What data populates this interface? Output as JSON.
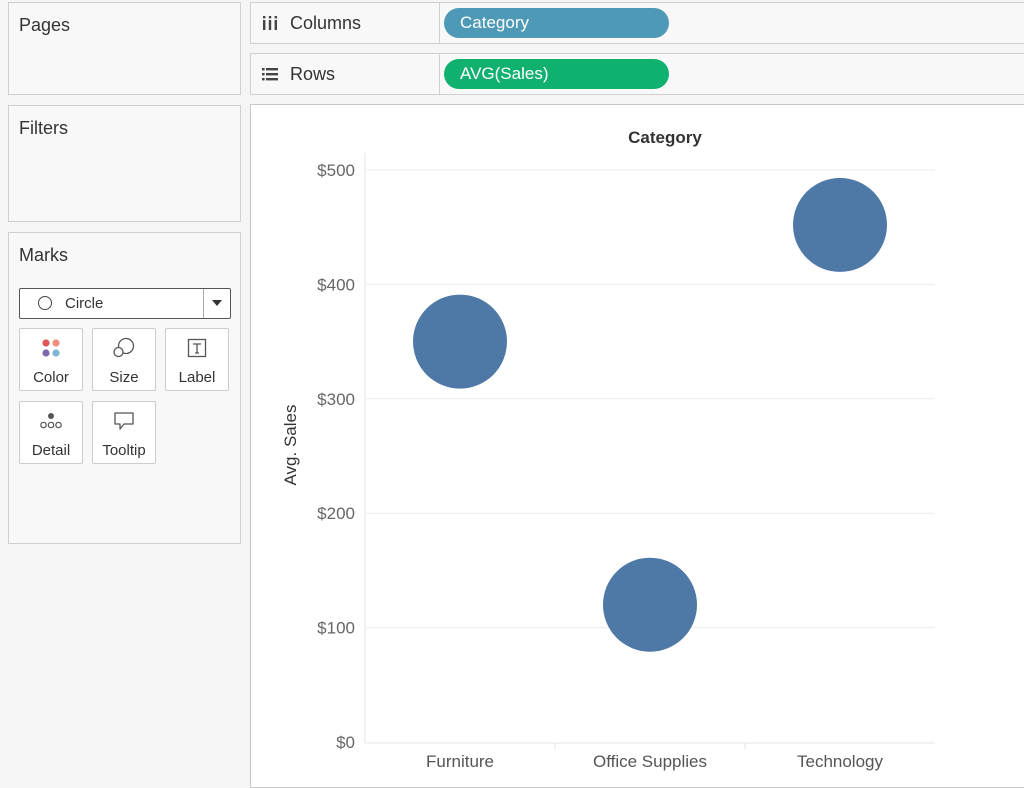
{
  "cards": {
    "pages": {
      "title": "Pages"
    },
    "filters": {
      "title": "Filters"
    },
    "marks": {
      "title": "Marks",
      "mark_type": "Circle",
      "buttons": {
        "color": "Color",
        "size": "Size",
        "label": "Label",
        "detail": "Detail",
        "tooltip": "Tooltip"
      }
    }
  },
  "shelves": {
    "columns": {
      "label": "Columns",
      "pill": "Category",
      "pill_color": "#4e99b5",
      "icon": "columns-icon"
    },
    "rows": {
      "label": "Rows",
      "pill": "AVG(Sales)",
      "pill_color": "#10b06f",
      "icon": "rows-icon"
    }
  },
  "chart_data": {
    "type": "scatter",
    "title": "Category",
    "ylabel": "Avg. Sales",
    "categories": [
      "Furniture",
      "Office Supplies",
      "Technology"
    ],
    "values": [
      350,
      120,
      452
    ],
    "y_ticks": [
      "$0",
      "$100",
      "$200",
      "$300",
      "$400",
      "$500"
    ],
    "ylim": [
      0,
      500
    ],
    "mark_color": "#4e79a7",
    "grid": true
  }
}
